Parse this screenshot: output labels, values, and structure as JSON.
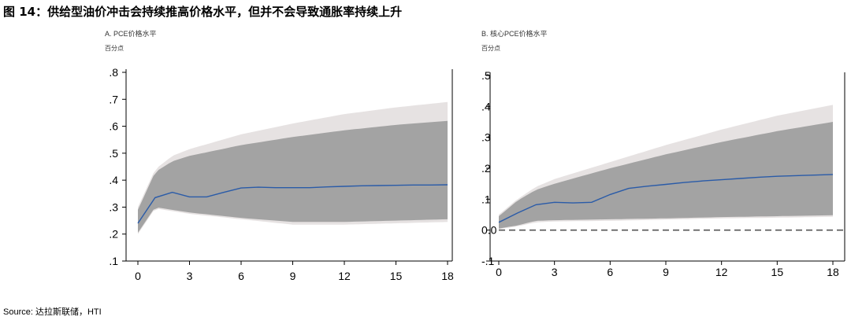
{
  "figure": {
    "title": "图 14：供给型油价冲击会持续推高价格水平，但并不会导致通胀率持续上升",
    "source": "Source: 达拉斯联储，HTI"
  },
  "chart_data": [
    {
      "type": "area",
      "title": "A. PCE价格水平",
      "unit": "百分点",
      "x_ticks": [
        0,
        3,
        6,
        9,
        12,
        15,
        18
      ],
      "y_ticks": [
        0.1,
        0.2,
        0.3,
        0.4,
        0.5,
        0.6,
        0.7,
        0.8
      ],
      "y_tick_labels": [
        ".1",
        ".2",
        ".3",
        ".4",
        ".5",
        ".6",
        ".7",
        ".8"
      ],
      "xlim": [
        0,
        18
      ],
      "ylim": [
        0.1,
        0.8
      ],
      "median": {
        "x": [
          0,
          1,
          2,
          3,
          4,
          5,
          6,
          7,
          8,
          9,
          10,
          11,
          12,
          13,
          14,
          15,
          16,
          17,
          18
        ],
        "y": [
          0.24,
          0.335,
          0.355,
          0.338,
          0.338,
          0.355,
          0.371,
          0.374,
          0.372,
          0.372,
          0.372,
          0.375,
          0.377,
          0.379,
          0.38,
          0.381,
          0.382,
          0.382,
          0.383
        ]
      },
      "band": {
        "x": [
          0,
          1,
          2,
          3,
          6,
          9,
          12,
          15,
          18
        ],
        "upper": [
          0.29,
          0.43,
          0.47,
          0.49,
          0.53,
          0.56,
          0.585,
          0.605,
          0.62
        ],
        "lower": [
          0.205,
          0.3,
          0.29,
          0.28,
          0.26,
          0.245,
          0.245,
          0.25,
          0.255
        ]
      },
      "outer_band": {
        "x": [
          0,
          1,
          2,
          3,
          6,
          9,
          12,
          15,
          18
        ],
        "upper": [
          0.3,
          0.44,
          0.49,
          0.515,
          0.57,
          0.61,
          0.645,
          0.67,
          0.69
        ],
        "lower": [
          0.2,
          0.295,
          0.285,
          0.275,
          0.255,
          0.235,
          0.235,
          0.24,
          0.245
        ]
      }
    },
    {
      "type": "area",
      "title": "B. 核心PCE价格水平",
      "unit": "百分点",
      "x_ticks": [
        0,
        3,
        6,
        9,
        12,
        15,
        18
      ],
      "y_ticks": [
        -0.1,
        0.0,
        0.1,
        0.2,
        0.3,
        0.4,
        0.5
      ],
      "y_tick_labels": [
        "-.1",
        "0.0",
        ".1",
        ".2",
        ".3",
        ".4",
        ".5"
      ],
      "xlim": [
        0,
        18
      ],
      "ylim": [
        -0.1,
        0.5
      ],
      "zero_line": 0,
      "median": {
        "x": [
          0,
          1,
          2,
          3,
          4,
          5,
          6,
          7,
          8,
          9,
          10,
          11,
          12,
          13,
          14,
          15,
          16,
          17,
          18
        ],
        "y": [
          0.025,
          0.055,
          0.082,
          0.09,
          0.088,
          0.09,
          0.115,
          0.135,
          0.142,
          0.148,
          0.154,
          0.159,
          0.163,
          0.167,
          0.171,
          0.174,
          0.176,
          0.178,
          0.18
        ]
      },
      "band": {
        "x": [
          0,
          1,
          2,
          3,
          6,
          9,
          12,
          15,
          18
        ],
        "upper": [
          0.045,
          0.095,
          0.13,
          0.15,
          0.2,
          0.245,
          0.285,
          0.32,
          0.35
        ],
        "lower": [
          0.005,
          0.015,
          0.03,
          0.032,
          0.035,
          0.038,
          0.042,
          0.045,
          0.048
        ]
      },
      "outer_band": {
        "x": [
          0,
          1,
          2,
          3,
          6,
          9,
          12,
          15,
          18
        ],
        "upper": [
          0.05,
          0.1,
          0.14,
          0.165,
          0.22,
          0.275,
          0.325,
          0.37,
          0.405
        ],
        "lower": [
          0.003,
          0.012,
          0.025,
          0.028,
          0.03,
          0.034,
          0.038,
          0.04,
          0.043
        ]
      }
    }
  ]
}
